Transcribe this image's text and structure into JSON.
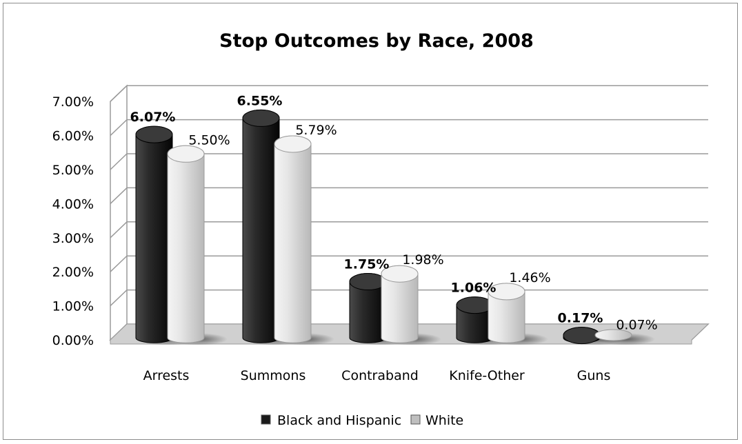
{
  "chart_data": {
    "type": "bar",
    "title": "Stop Outcomes by Race, 2008",
    "categories": [
      "Arrests",
      "Summons",
      "Contraband",
      "Knife-Other",
      "Guns"
    ],
    "series": [
      {
        "name": "Black and Hispanic",
        "values": [
          6.07,
          6.55,
          1.75,
          1.06,
          0.17
        ],
        "labels": [
          "6.07%",
          "6.55%",
          "1.75%",
          "1.06%",
          "0.17%"
        ],
        "color": "#1a1a1a"
      },
      {
        "name": "White",
        "values": [
          5.5,
          5.79,
          1.98,
          1.46,
          0.07
        ],
        "labels": [
          "5.50%",
          "5.79%",
          "1.98%",
          "1.46%",
          "0.07%"
        ],
        "color": "#d9d9d9"
      }
    ],
    "yticks": [
      "0.00%",
      "1.00%",
      "2.00%",
      "3.00%",
      "4.00%",
      "5.00%",
      "6.00%",
      "7.00%"
    ],
    "ylim": [
      0,
      7
    ],
    "xlabel": "",
    "ylabel": "",
    "grid": true,
    "legend_position": "bottom",
    "style": "3d-cylinder"
  }
}
